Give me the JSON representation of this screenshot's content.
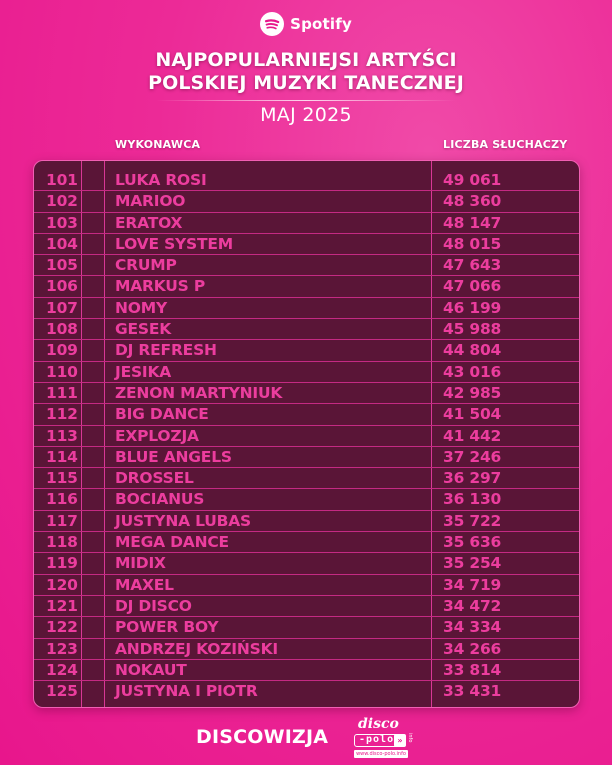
{
  "header": {
    "brand": "Spotify",
    "brand_icon": "spotify-icon",
    "title_line1": "NAJPOPULARNIEJSI ARTYŚCI",
    "title_line2": "POLSKIEJ MUZYKI TANECZNEJ",
    "subtitle": "MAJ 2025"
  },
  "table": {
    "columns": {
      "rank": "",
      "artist": "WYKONAWCA",
      "listeners": "LICZBA SŁUCHACZY"
    },
    "rows": [
      {
        "rank": "101",
        "artist": "LUKA ROSI",
        "listeners": "49 061"
      },
      {
        "rank": "102",
        "artist": "MARIOO",
        "listeners": "48 360"
      },
      {
        "rank": "103",
        "artist": "ERATOX",
        "listeners": "48 147"
      },
      {
        "rank": "104",
        "artist": "LOVE SYSTEM",
        "listeners": "48 015"
      },
      {
        "rank": "105",
        "artist": "CRUMP",
        "listeners": "47 643"
      },
      {
        "rank": "106",
        "artist": "MARKUS P",
        "listeners": "47 066"
      },
      {
        "rank": "107",
        "artist": "NOMY",
        "listeners": "46 199"
      },
      {
        "rank": "108",
        "artist": "GESEK",
        "listeners": "45 988"
      },
      {
        "rank": "109",
        "artist": "DJ REFRESH",
        "listeners": "44 804"
      },
      {
        "rank": "110",
        "artist": "JESIKA",
        "listeners": "43 016"
      },
      {
        "rank": "111",
        "artist": "ZENON MARTYNIUK",
        "listeners": "42 985"
      },
      {
        "rank": "112",
        "artist": "BIG DANCE",
        "listeners": "41 504"
      },
      {
        "rank": "113",
        "artist": "EXPLOZJA",
        "listeners": "41 442"
      },
      {
        "rank": "114",
        "artist": "BLUE ANGELS",
        "listeners": "37 246"
      },
      {
        "rank": "115",
        "artist": "DROSSEL",
        "listeners": "36 297"
      },
      {
        "rank": "116",
        "artist": "BOCIANUS",
        "listeners": "36 130"
      },
      {
        "rank": "117",
        "artist": "JUSTYNA LUBAS",
        "listeners": "35 722"
      },
      {
        "rank": "118",
        "artist": "MEGA DANCE",
        "listeners": "35 636"
      },
      {
        "rank": "119",
        "artist": "MIDIX",
        "listeners": "35 254"
      },
      {
        "rank": "120",
        "artist": "MAXEL",
        "listeners": "34 719"
      },
      {
        "rank": "121",
        "artist": "DJ DISCO",
        "listeners": "34 472"
      },
      {
        "rank": "122",
        "artist": "POWER BOY",
        "listeners": "34 334"
      },
      {
        "rank": "123",
        "artist": "ANDRZEJ KOZIŃSKI",
        "listeners": "34 266"
      },
      {
        "rank": "124",
        "artist": "NOKAUT",
        "listeners": "33 814"
      },
      {
        "rank": "125",
        "artist": "JUSTYNA I PIOTR",
        "listeners": "33 431"
      }
    ]
  },
  "footer": {
    "brand": "DISCOWIZJA",
    "logo_top": "disco",
    "logo_mid": "-polo",
    "logo_arrow": "»",
    "logo_side": "info",
    "logo_url": "www.disco-polo.info"
  },
  "colors": {
    "background": "#ec2a97",
    "table_bg": "#5a1537",
    "grid_line": "#c42a83",
    "table_text": "#ec3d9e",
    "header_text": "#ffffff"
  }
}
